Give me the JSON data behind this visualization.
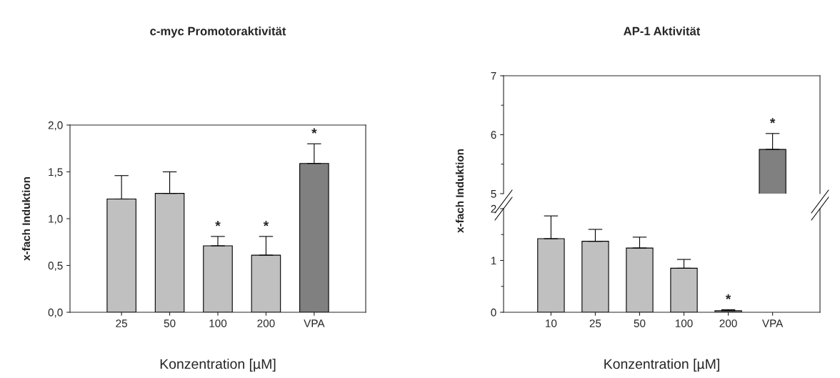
{
  "chart_data": [
    {
      "type": "bar",
      "title": "c-myc Promotoraktivität",
      "xlabel": "Konzentration [µM]",
      "ylabel": "x-fach Induktion",
      "categories": [
        "25",
        "50",
        "100",
        "200",
        "VPA"
      ],
      "values": [
        1.21,
        1.27,
        0.71,
        0.61,
        1.59
      ],
      "colors": [
        "#c0c0c0",
        "#c0c0c0",
        "#c0c0c0",
        "#c0c0c0",
        "#808080"
      ],
      "errors": [
        [
          1.21,
          1.46
        ],
        [
          1.27,
          1.5
        ],
        [
          0.71,
          0.81
        ],
        [
          0.61,
          0.81
        ],
        [
          1.59,
          1.8
        ]
      ],
      "ylim": [
        0,
        2
      ],
      "yticks": [
        {
          "value": 0,
          "label": "0,0"
        },
        {
          "value": 0.5,
          "label": "0,5"
        },
        {
          "value": 1,
          "label": "1,0"
        },
        {
          "value": 1.5,
          "label": "1,5"
        },
        {
          "value": 2,
          "label": "2,0"
        }
      ],
      "annotations": [
        {
          "text": "*",
          "x": "100",
          "y": 0.81
        },
        {
          "text": "*",
          "x": "200",
          "y": 0.81
        },
        {
          "text": "*",
          "x": "VPA",
          "y": 1.8
        }
      ],
      "grid": false
    },
    {
      "type": "bar",
      "title": "AP-1 Aktivität",
      "categories": [
        "10",
        "25",
        "50",
        "100",
        "200",
        "VPA"
      ],
      "values": [
        null,
        null,
        null,
        null,
        null,
        5.75
      ],
      "colors": [
        "#c0c0c0",
        "#c0c0c0",
        "#c0c0c0",
        "#c0c0c0",
        "#c0c0c0",
        "#808080"
      ],
      "errors": [
        null,
        null,
        null,
        null,
        null,
        [
          5.75,
          6.02
        ]
      ],
      "ylim": [
        5,
        7
      ],
      "yticks": [
        5,
        {
          "value": 5.5,
          "label": null
        },
        6,
        {
          "value": 6.5,
          "label": null
        },
        7
      ],
      "annotations": [
        {
          "text": "*",
          "x": "VPA",
          "y": 6.02
        }
      ],
      "tick_labels": "y",
      "grid": false
    },
    {
      "type": "bar",
      "xlabel": "Konzentration [µM]",
      "ylabel": "x-fach Induktion",
      "categories": [
        "10",
        "25",
        "50",
        "100",
        "200",
        "VPA"
      ],
      "values": [
        1.42,
        1.37,
        1.24,
        0.85,
        0.03,
        null
      ],
      "colors": [
        "#c0c0c0",
        "#c0c0c0",
        "#c0c0c0",
        "#c0c0c0",
        "#c0c0c0",
        "#808080"
      ],
      "errors": [
        [
          1.42,
          1.86
        ],
        [
          1.37,
          1.6
        ],
        [
          1.24,
          1.45
        ],
        [
          0.85,
          1.02
        ],
        [
          0.03,
          0.05
        ],
        null
      ],
      "ylim": [
        0,
        2
      ],
      "yticks": [
        0,
        {
          "value": 0.5,
          "label": null
        },
        1,
        {
          "value": 1.5,
          "label": null
        },
        2
      ],
      "annotations": [
        {
          "text": "*",
          "x": "200",
          "y": 0.05
        }
      ],
      "grid": false
    }
  ]
}
